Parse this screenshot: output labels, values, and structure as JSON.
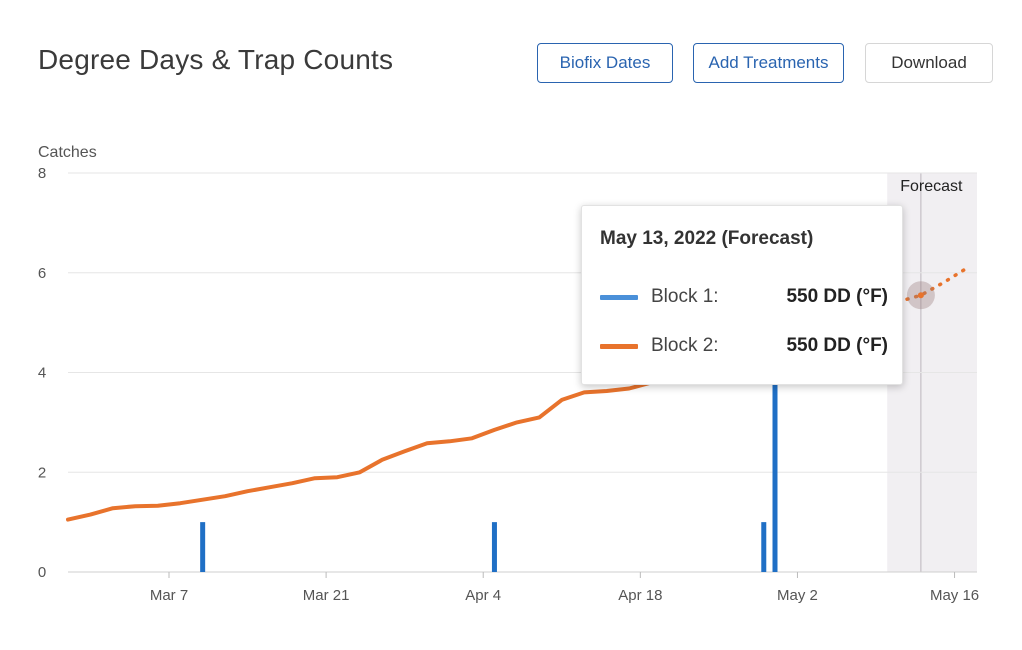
{
  "header": {
    "title": "Degree Days & Trap Counts",
    "biofix_label": "Biofix Dates",
    "treatments_label": "Add Treatments",
    "download_label": "Download"
  },
  "tooltip": {
    "title": "May 13, 2022 (Forecast)",
    "rows": [
      {
        "label": "Block 1:",
        "value": "550 DD (°F)",
        "color": "#4a90d9"
      },
      {
        "label": "Block 2:",
        "value": "550 DD (°F)",
        "color": "#e8732c"
      }
    ]
  },
  "colors": {
    "accent": "#2a64b0",
    "bar": "#1f6fc5",
    "line": "#e8732c",
    "forecast_band": "#f1eff2",
    "grid": "#e6e6e6"
  },
  "chart_data": {
    "type": "line",
    "ylabel": "Catches",
    "ylim": [
      0,
      8
    ],
    "yticks": [
      0,
      2,
      4,
      6,
      8
    ],
    "xlim": [
      "2022-02-26",
      "2022-05-18"
    ],
    "xticks": [
      {
        "date": "2022-03-07",
        "label": "Mar 7"
      },
      {
        "date": "2022-03-21",
        "label": "Mar 21"
      },
      {
        "date": "2022-04-04",
        "label": "Apr 4"
      },
      {
        "date": "2022-04-18",
        "label": "Apr 18"
      },
      {
        "date": "2022-05-02",
        "label": "May 2"
      },
      {
        "date": "2022-05-16",
        "label": "May 16"
      }
    ],
    "forecast": {
      "label": "Forecast",
      "start": "2022-05-10",
      "end": "2022-05-18",
      "marker": "2022-05-13"
    },
    "bars": [
      {
        "date": "2022-03-10",
        "value": 1
      },
      {
        "date": "2022-04-05",
        "value": 1
      },
      {
        "date": "2022-04-29",
        "value": 1
      },
      {
        "date": "2022-04-30",
        "value": 4
      }
    ],
    "series": [
      {
        "type": "line",
        "x": [
          "2022-02-26",
          "2022-02-28",
          "2022-03-02",
          "2022-03-04",
          "2022-03-06",
          "2022-03-08",
          "2022-03-10",
          "2022-03-12",
          "2022-03-14",
          "2022-03-16",
          "2022-03-18",
          "2022-03-20",
          "2022-03-22",
          "2022-03-24",
          "2022-03-26",
          "2022-03-28",
          "2022-03-30",
          "2022-04-01",
          "2022-04-03",
          "2022-04-05",
          "2022-04-07",
          "2022-04-09",
          "2022-04-11",
          "2022-04-13",
          "2022-04-15",
          "2022-04-17",
          "2022-04-19",
          "2022-04-21",
          "2022-04-23",
          "2022-04-25",
          "2022-04-27",
          "2022-04-29"
        ],
        "values": [
          1.05,
          1.15,
          1.28,
          1.32,
          1.33,
          1.38,
          1.45,
          1.52,
          1.62,
          1.7,
          1.78,
          1.88,
          1.9,
          2.0,
          2.25,
          2.42,
          2.58,
          2.62,
          2.68,
          2.85,
          3.0,
          3.1,
          3.45,
          3.6,
          3.63,
          3.68,
          3.8,
          3.85,
          3.95,
          4.1,
          4.3,
          4.45
        ]
      },
      {
        "type": "forecast",
        "x": [
          "2022-05-11",
          "2022-05-13",
          "2022-05-15",
          "2022-05-17"
        ],
        "values": [
          5.42,
          5.55,
          5.8,
          6.08
        ]
      }
    ]
  }
}
